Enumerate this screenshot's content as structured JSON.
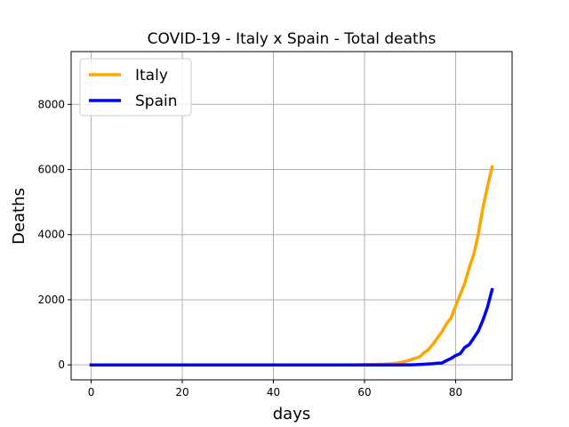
{
  "chart_data": {
    "type": "line",
    "title": "COVID-19 - Italy x Spain - Total deaths",
    "xlabel": "days",
    "ylabel": "Deaths",
    "xlim": [
      -4.4,
      92.4
    ],
    "ylim": [
      -460,
      9620
    ],
    "xticks": [
      0,
      20,
      40,
      60,
      80
    ],
    "yticks": [
      0,
      2000,
      4000,
      6000,
      8000
    ],
    "grid": true,
    "legend": "top-left",
    "series": [
      {
        "name": "Italy",
        "color": "#ffa500",
        "x": [
          0,
          5,
          10,
          15,
          20,
          25,
          30,
          35,
          40,
          45,
          50,
          55,
          58,
          60,
          61,
          62,
          63,
          64,
          65,
          66,
          67,
          68,
          69,
          70,
          71,
          72,
          73,
          74,
          75,
          76,
          77,
          78,
          79,
          80,
          81,
          82,
          83,
          84,
          85,
          86,
          87,
          88
        ],
        "y": [
          0,
          0,
          0,
          0,
          0,
          0,
          0,
          0,
          0,
          0,
          0,
          0,
          3,
          7,
          10,
          12,
          17,
          21,
          29,
          34,
          52,
          79,
          107,
          148,
          197,
          233,
          366,
          463,
          631,
          827,
          1016,
          1266,
          1441,
          1809,
          2158,
          2503,
          2978,
          3405,
          4032,
          4825,
          5476,
          6077
        ]
      },
      {
        "name": "Spain",
        "color": "#0000ff",
        "x": [
          0,
          5,
          10,
          15,
          20,
          25,
          30,
          35,
          40,
          45,
          50,
          55,
          60,
          65,
          68,
          69,
          70,
          71,
          72,
          73,
          74,
          75,
          76,
          77,
          78,
          79,
          80,
          81,
          82,
          83,
          84,
          85,
          86,
          87,
          88
        ],
        "y": [
          0,
          0,
          0,
          0,
          0,
          0,
          0,
          0,
          0,
          0,
          0,
          0,
          0,
          0,
          0,
          2,
          3,
          5,
          10,
          17,
          28,
          35,
          54,
          55,
          133,
          195,
          289,
          342,
          533,
          623,
          830,
          1043,
          1375,
          1772,
          2311
        ]
      }
    ]
  }
}
